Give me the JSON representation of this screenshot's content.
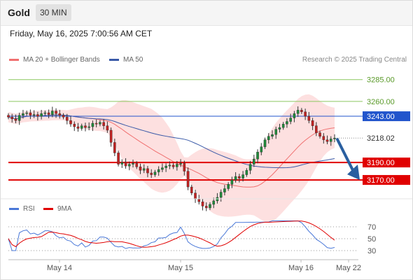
{
  "header": {
    "instrument": "Gold",
    "timeframe": "30 MIN",
    "datetime": "Friday, May 16, 2025 7:00:56 AM CET"
  },
  "legend": {
    "ma20_label": "MA 20 + Bollinger Bands",
    "ma50_label": "MA 50",
    "copyright": "Research © 2025 Trading Central"
  },
  "colors": {
    "bollinger_fill": "#fde0e0",
    "ma20": "#f07070",
    "ma50": "#3a5aa8",
    "support": "#e00000",
    "resistance_green": "#8cc860",
    "resistance_blue": "#2255cc",
    "current_price": "#333333",
    "arrow": "#2a5fa0",
    "rsi": "#4a78d8",
    "rsi_ma": "#e00000"
  },
  "chart_data": [
    {
      "type": "candlestick",
      "title": "Gold 30 MIN",
      "x_labels": [
        "May 14",
        "May 15",
        "May 16",
        "May 22"
      ],
      "y_range": [
        3150,
        3300
      ],
      "price_levels": [
        {
          "value": 3285.0,
          "label": "3285.00",
          "kind": "resistance",
          "color": "#8cc860"
        },
        {
          "value": 3260.0,
          "label": "3260.00",
          "kind": "resistance",
          "color": "#8cc860"
        },
        {
          "value": 3243.0,
          "label": "3243.00",
          "kind": "pivot",
          "color": "#2255cc"
        },
        {
          "value": 3218.02,
          "label": "3218.02",
          "kind": "current",
          "color": "#333333"
        },
        {
          "value": 3190.0,
          "label": "3190.00",
          "kind": "support",
          "color": "#e00000"
        },
        {
          "value": 3170.0,
          "label": "3170.00",
          "kind": "support",
          "color": "#e00000"
        }
      ],
      "close_path": [
        3242,
        3240,
        3238,
        3244,
        3246,
        3247,
        3244,
        3245,
        3243,
        3246,
        3247,
        3245,
        3249,
        3246,
        3244,
        3242,
        3238,
        3234,
        3231,
        3229,
        3232,
        3230,
        3231,
        3235,
        3234,
        3236,
        3232,
        3227,
        3213,
        3201,
        3188,
        3190,
        3186,
        3188,
        3189,
        3185,
        3181,
        3183,
        3178,
        3176,
        3179,
        3182,
        3184,
        3186,
        3187,
        3185,
        3188,
        3189,
        3180,
        3162,
        3155,
        3148,
        3145,
        3140,
        3138,
        3142,
        3146,
        3150,
        3156,
        3160,
        3165,
        3170,
        3174,
        3172,
        3176,
        3181,
        3188,
        3194,
        3202,
        3208,
        3216,
        3220,
        3222,
        3228,
        3230,
        3234,
        3237,
        3241,
        3246,
        3250,
        3248,
        3243,
        3238,
        3232,
        3224,
        3220,
        3216,
        3214,
        3217,
        3218
      ],
      "series": [
        {
          "name": "MA 20 + Bollinger Bands",
          "values": "smoothed close_path, 20 periods"
        },
        {
          "name": "MA 50",
          "values": "smoothed close_path, 50 periods"
        }
      ]
    },
    {
      "type": "line",
      "title": "RSI",
      "y_ticks": [
        70,
        50,
        30
      ],
      "series": [
        {
          "name": "RSI"
        },
        {
          "name": "9MA"
        }
      ]
    }
  ],
  "rsi": {
    "rsi_label": "RSI",
    "ma_label": "9MA"
  }
}
